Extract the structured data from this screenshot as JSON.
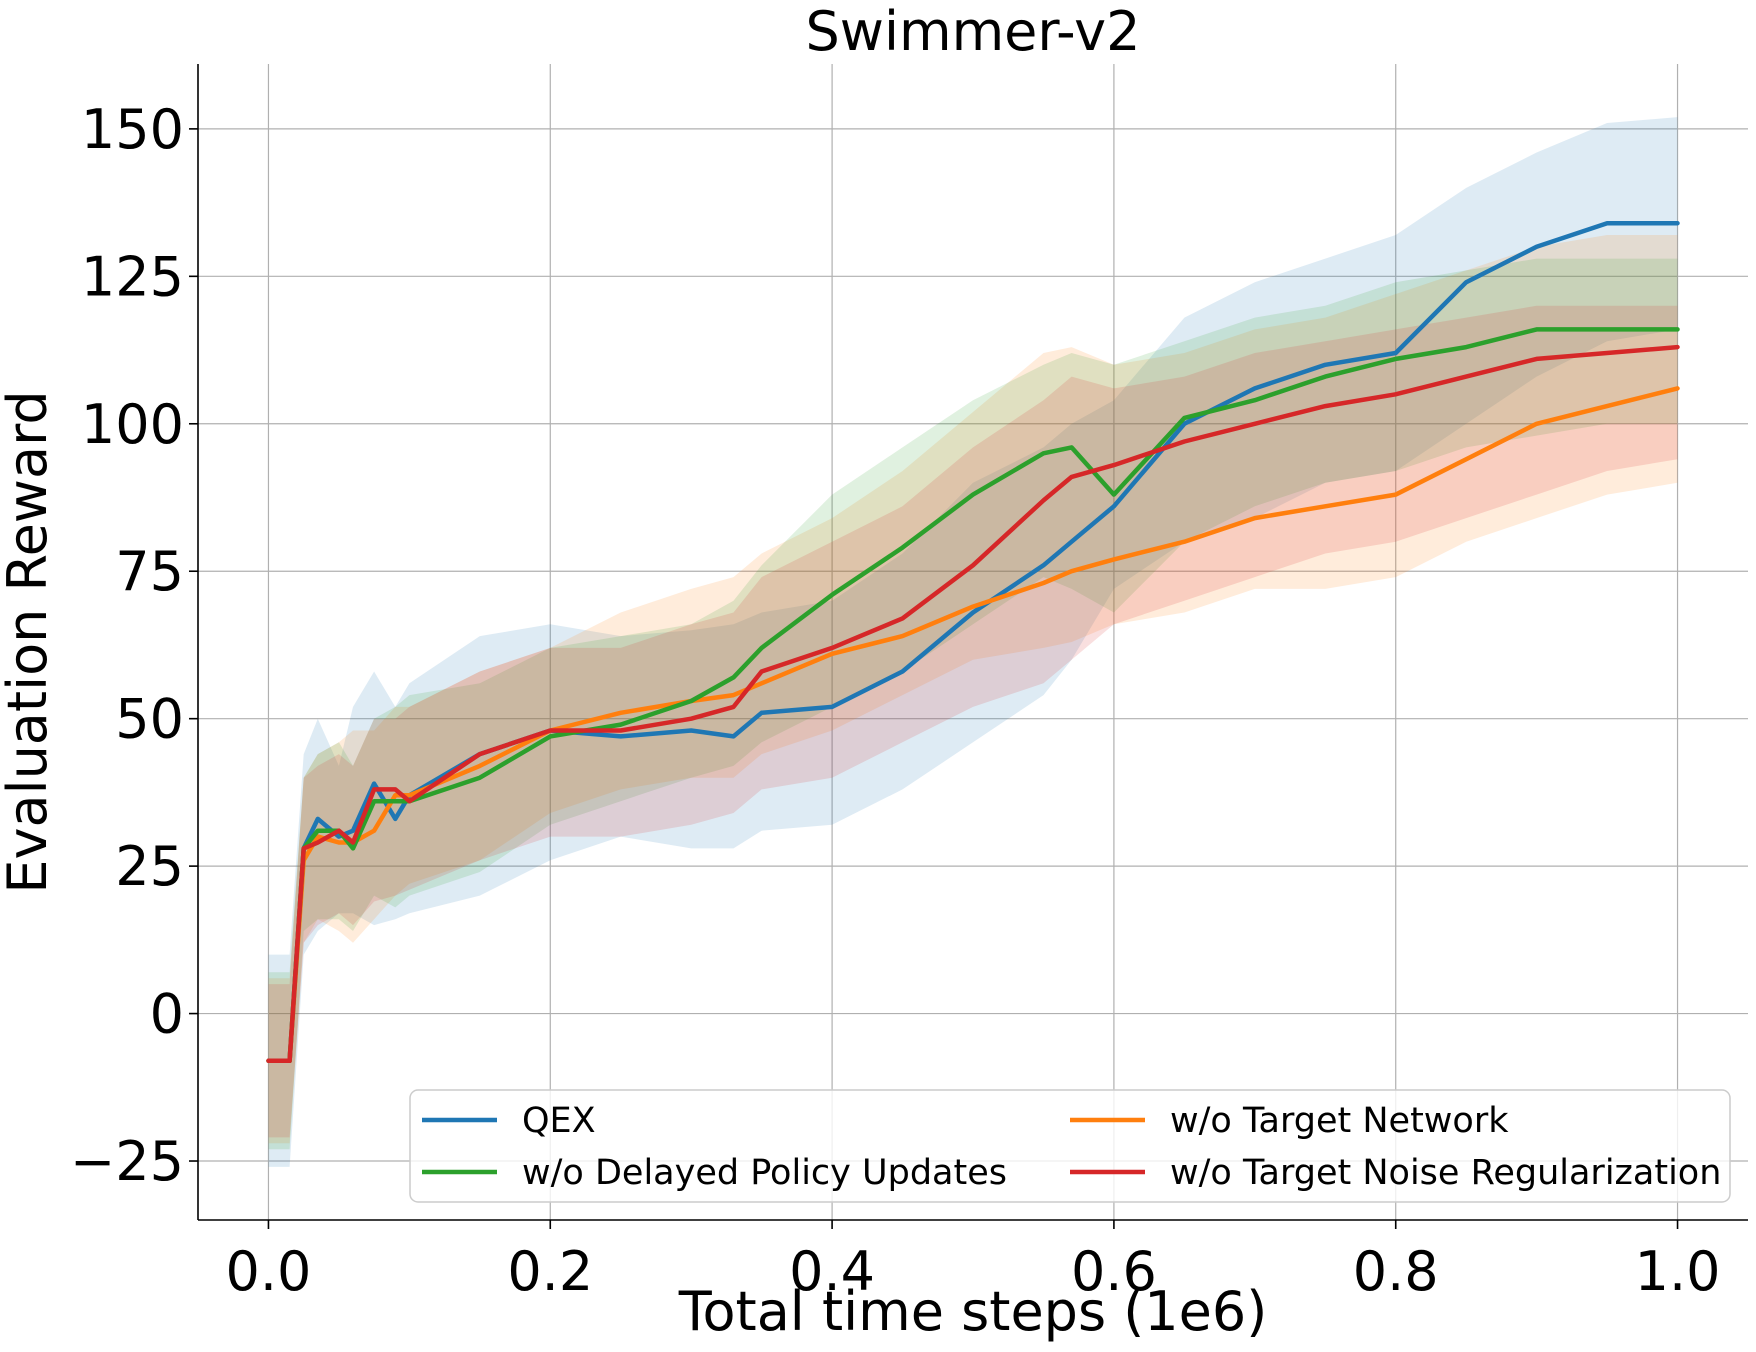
{
  "chart_data": {
    "type": "line",
    "title": "Swimmer-v2",
    "xlabel": "Total time steps (1e6)",
    "ylabel": "Evaluation Reward",
    "xlim": [
      -0.05,
      1.05
    ],
    "ylim": [
      -35,
      161
    ],
    "xticks": [
      0.0,
      0.2,
      0.4,
      0.6,
      0.8,
      1.0
    ],
    "xtick_labels": [
      "0.0",
      "0.2",
      "0.4",
      "0.6",
      "0.8",
      "1.0"
    ],
    "yticks": [
      -25,
      0,
      25,
      50,
      75,
      100,
      125,
      150
    ],
    "ytick_labels": [
      "−25",
      "0",
      "25",
      "50",
      "75",
      "100",
      "125",
      "150"
    ],
    "grid": true,
    "legend_position": "lower-right",
    "x": [
      0.0,
      0.015,
      0.025,
      0.035,
      0.05,
      0.06,
      0.075,
      0.09,
      0.1,
      0.15,
      0.2,
      0.25,
      0.3,
      0.33,
      0.35,
      0.4,
      0.45,
      0.5,
      0.55,
      0.57,
      0.6,
      0.65,
      0.7,
      0.75,
      0.8,
      0.85,
      0.9,
      0.95,
      1.0
    ],
    "series": [
      {
        "name": "QEX",
        "color": "#1f77b4",
        "values": [
          -8,
          -8,
          28,
          33,
          30,
          31,
          39,
          33,
          37,
          44,
          48,
          47,
          48,
          47,
          51,
          52,
          58,
          68,
          76,
          80,
          86,
          100,
          106,
          110,
          112,
          124,
          130,
          134,
          134
        ],
        "lower": [
          -26,
          -26,
          10,
          14,
          17,
          17,
          15,
          16,
          17,
          20,
          26,
          30,
          28,
          28,
          31,
          32,
          38,
          46,
          54,
          60,
          72,
          80,
          84,
          90,
          92,
          100,
          108,
          114,
          116
        ],
        "upper": [
          10,
          10,
          44,
          50,
          42,
          52,
          58,
          52,
          56,
          64,
          66,
          64,
          65,
          66,
          68,
          70,
          78,
          90,
          96,
          100,
          104,
          118,
          124,
          128,
          132,
          140,
          146,
          151,
          152
        ]
      },
      {
        "name": "w/o Target Network",
        "color": "#ff7f0e",
        "values": [
          -8,
          -8,
          26,
          30,
          29,
          29,
          31,
          37,
          37,
          42,
          48,
          51,
          53,
          54,
          56,
          61,
          64,
          69,
          73,
          75,
          77,
          80,
          84,
          86,
          88,
          94,
          100,
          103,
          106
        ],
        "lower": [
          -22,
          -22,
          12,
          16,
          14,
          12,
          16,
          20,
          22,
          26,
          34,
          38,
          40,
          40,
          44,
          48,
          54,
          60,
          62,
          63,
          66,
          68,
          72,
          72,
          74,
          80,
          84,
          88,
          90
        ],
        "upper": [
          6,
          6,
          40,
          44,
          46,
          48,
          48,
          52,
          52,
          58,
          62,
          68,
          72,
          74,
          78,
          84,
          92,
          102,
          112,
          113,
          110,
          112,
          116,
          118,
          122,
          126,
          130,
          132,
          132
        ]
      },
      {
        "name": "w/o Delayed Policy Updates",
        "color": "#2ca02c",
        "values": [
          -8,
          -8,
          28,
          31,
          31,
          28,
          36,
          36,
          36,
          40,
          47,
          49,
          53,
          57,
          62,
          71,
          79,
          88,
          95,
          96,
          88,
          101,
          104,
          108,
          111,
          113,
          116,
          116,
          116
        ],
        "lower": [
          -23,
          -23,
          14,
          16,
          16,
          14,
          20,
          18,
          20,
          24,
          32,
          36,
          40,
          42,
          46,
          52,
          58,
          66,
          74,
          72,
          68,
          80,
          86,
          90,
          92,
          96,
          98,
          100,
          100
        ],
        "upper": [
          7,
          7,
          40,
          44,
          46,
          42,
          50,
          52,
          54,
          56,
          62,
          64,
          66,
          70,
          76,
          88,
          96,
          104,
          110,
          112,
          110,
          114,
          118,
          120,
          124,
          126,
          128,
          128,
          128
        ]
      },
      {
        "name": "w/o Target Noise Regularization",
        "color": "#d62728",
        "values": [
          -8,
          -8,
          28,
          29,
          31,
          29,
          38,
          38,
          36,
          44,
          48,
          48,
          50,
          52,
          58,
          62,
          67,
          76,
          87,
          91,
          93,
          97,
          100,
          103,
          105,
          108,
          111,
          112,
          113
        ],
        "lower": [
          -21,
          -21,
          12,
          15,
          17,
          15,
          19,
          20,
          21,
          26,
          30,
          30,
          32,
          34,
          38,
          40,
          46,
          52,
          56,
          60,
          66,
          70,
          74,
          78,
          80,
          84,
          88,
          92,
          94
        ],
        "upper": [
          5,
          5,
          40,
          42,
          44,
          42,
          50,
          50,
          52,
          58,
          62,
          62,
          66,
          68,
          74,
          80,
          86,
          96,
          104,
          108,
          106,
          108,
          112,
          114,
          116,
          118,
          120,
          120,
          120
        ]
      }
    ],
    "legend": {
      "left_column": [
        "QEX",
        "w/o Delayed Policy Updates"
      ],
      "right_column": [
        "w/o Target Network",
        "w/o Target Noise Regularization"
      ]
    }
  }
}
